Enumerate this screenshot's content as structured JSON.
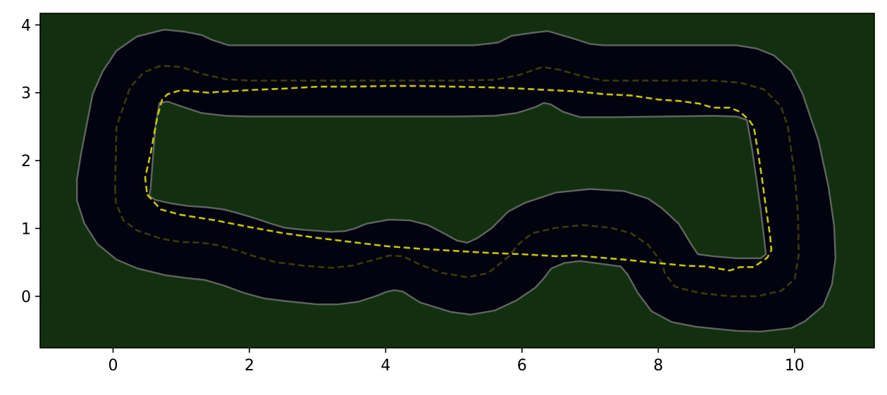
{
  "chart_data": {
    "type": "line",
    "title": "",
    "xlabel": "",
    "ylabel": "",
    "xlim": [
      -1.07,
      11.17
    ],
    "ylim": [
      -0.76,
      4.17
    ],
    "grid": false,
    "legend": "none",
    "x_ticks": [
      0,
      2,
      4,
      6,
      8,
      10
    ],
    "y_ticks": [
      0,
      1,
      2,
      3,
      4
    ],
    "x_tick_labels": [
      "0",
      "2",
      "4",
      "6",
      "8",
      "10"
    ],
    "y_tick_labels": [
      "0",
      "1",
      "2",
      "3",
      "4"
    ],
    "colors": {
      "background": "#12300f",
      "track": "#03030f",
      "track_edge": "#5f6460",
      "centerline": "#3b3a0a",
      "racing_line": "#c8c40a"
    },
    "series": [
      {
        "role": "track-outer-edge",
        "points": [
          [
            -0.53,
            1.72
          ],
          [
            -0.53,
            1.41
          ],
          [
            -0.42,
            1.07
          ],
          [
            -0.23,
            0.77
          ],
          [
            0.05,
            0.54
          ],
          [
            0.36,
            0.41
          ],
          [
            0.77,
            0.31
          ],
          [
            1.07,
            0.27
          ],
          [
            1.35,
            0.24
          ],
          [
            1.62,
            0.16
          ],
          [
            1.92,
            0.05
          ],
          [
            2.21,
            -0.03
          ],
          [
            2.52,
            -0.07
          ],
          [
            3.0,
            -0.12
          ],
          [
            3.3,
            -0.12
          ],
          [
            3.6,
            -0.08
          ],
          [
            3.85,
            0.0
          ],
          [
            4.0,
            0.06
          ],
          [
            4.12,
            0.09
          ],
          [
            4.25,
            0.07
          ],
          [
            4.5,
            -0.09
          ],
          [
            4.95,
            -0.23
          ],
          [
            5.25,
            -0.27
          ],
          [
            5.6,
            -0.21
          ],
          [
            5.92,
            -0.06
          ],
          [
            6.2,
            0.13
          ],
          [
            6.3,
            0.24
          ],
          [
            6.43,
            0.41
          ],
          [
            6.62,
            0.49
          ],
          [
            6.85,
            0.52
          ],
          [
            7.45,
            0.44
          ],
          [
            7.55,
            0.32
          ],
          [
            7.7,
            0.05
          ],
          [
            7.9,
            -0.22
          ],
          [
            8.2,
            -0.38
          ],
          [
            8.55,
            -0.45
          ],
          [
            9.15,
            -0.51
          ],
          [
            9.5,
            -0.52
          ],
          [
            9.95,
            -0.47
          ],
          [
            10.15,
            -0.37
          ],
          [
            10.42,
            -0.14
          ],
          [
            10.55,
            0.18
          ],
          [
            10.6,
            0.57
          ],
          [
            10.58,
            1.04
          ],
          [
            10.5,
            1.6
          ],
          [
            10.35,
            2.3
          ],
          [
            10.23,
            2.65
          ],
          [
            10.12,
            2.98
          ],
          [
            9.95,
            3.32
          ],
          [
            9.7,
            3.55
          ],
          [
            9.45,
            3.65
          ],
          [
            9.15,
            3.7
          ],
          [
            7.2,
            3.7
          ],
          [
            7.0,
            3.72
          ],
          [
            6.75,
            3.8
          ],
          [
            6.38,
            3.91
          ],
          [
            6.2,
            3.89
          ],
          [
            5.85,
            3.84
          ],
          [
            5.65,
            3.74
          ],
          [
            5.3,
            3.7
          ],
          [
            4.75,
            3.7
          ],
          [
            3.0,
            3.7
          ],
          [
            2.0,
            3.7
          ],
          [
            1.7,
            3.7
          ],
          [
            1.45,
            3.78
          ],
          [
            1.3,
            3.85
          ],
          [
            1.05,
            3.9
          ],
          [
            0.75,
            3.93
          ],
          [
            0.35,
            3.83
          ],
          [
            0.05,
            3.62
          ],
          [
            -0.15,
            3.32
          ],
          [
            -0.3,
            2.98
          ],
          [
            -0.47,
            2.1
          ],
          [
            -0.53,
            1.72
          ]
        ]
      },
      {
        "role": "track-inner-edge",
        "points": [
          [
            0.55,
            1.58
          ],
          [
            0.53,
            1.48
          ],
          [
            0.62,
            1.42
          ],
          [
            0.85,
            1.37
          ],
          [
            1.1,
            1.33
          ],
          [
            1.4,
            1.31
          ],
          [
            1.62,
            1.28
          ],
          [
            1.78,
            1.24
          ],
          [
            2.05,
            1.16
          ],
          [
            2.35,
            1.06
          ],
          [
            2.52,
            1.01
          ],
          [
            2.8,
            0.98
          ],
          [
            3.2,
            0.95
          ],
          [
            3.4,
            0.96
          ],
          [
            3.55,
            1.0
          ],
          [
            3.72,
            1.07
          ],
          [
            4.05,
            1.13
          ],
          [
            4.35,
            1.12
          ],
          [
            4.62,
            1.05
          ],
          [
            4.85,
            0.93
          ],
          [
            5.05,
            0.82
          ],
          [
            5.2,
            0.79
          ],
          [
            5.35,
            0.86
          ],
          [
            5.55,
            1.0
          ],
          [
            5.8,
            1.25
          ],
          [
            6.05,
            1.38
          ],
          [
            6.5,
            1.53
          ],
          [
            7.0,
            1.58
          ],
          [
            7.5,
            1.55
          ],
          [
            7.85,
            1.44
          ],
          [
            8.05,
            1.3
          ],
          [
            8.3,
            1.07
          ],
          [
            8.5,
            0.74
          ],
          [
            8.58,
            0.62
          ],
          [
            8.8,
            0.59
          ],
          [
            9.15,
            0.56
          ],
          [
            9.5,
            0.56
          ],
          [
            9.58,
            0.62
          ],
          [
            9.5,
            1.3
          ],
          [
            9.38,
            2.15
          ],
          [
            9.3,
            2.6
          ],
          [
            9.15,
            2.65
          ],
          [
            8.8,
            2.66
          ],
          [
            7.4,
            2.64
          ],
          [
            6.85,
            2.64
          ],
          [
            6.6,
            2.72
          ],
          [
            6.42,
            2.83
          ],
          [
            6.32,
            2.85
          ],
          [
            6.2,
            2.79
          ],
          [
            5.92,
            2.7
          ],
          [
            5.6,
            2.66
          ],
          [
            5.0,
            2.65
          ],
          [
            2.0,
            2.65
          ],
          [
            1.65,
            2.66
          ],
          [
            1.3,
            2.7
          ],
          [
            1.0,
            2.8
          ],
          [
            0.8,
            2.87
          ],
          [
            0.68,
            2.85
          ],
          [
            0.62,
            2.5
          ],
          [
            0.55,
            1.58
          ]
        ]
      },
      {
        "role": "track-centerline",
        "points": [
          [
            0.03,
            1.6
          ],
          [
            0.04,
            1.38
          ],
          [
            0.15,
            1.12
          ],
          [
            0.35,
            0.97
          ],
          [
            0.7,
            0.85
          ],
          [
            1.0,
            0.8
          ],
          [
            1.3,
            0.79
          ],
          [
            1.55,
            0.75
          ],
          [
            1.8,
            0.68
          ],
          [
            2.1,
            0.58
          ],
          [
            2.4,
            0.5
          ],
          [
            2.8,
            0.45
          ],
          [
            3.2,
            0.42
          ],
          [
            3.5,
            0.45
          ],
          [
            3.8,
            0.53
          ],
          [
            4.05,
            0.6
          ],
          [
            4.25,
            0.59
          ],
          [
            4.5,
            0.47
          ],
          [
            4.8,
            0.35
          ],
          [
            5.2,
            0.28
          ],
          [
            5.5,
            0.34
          ],
          [
            5.8,
            0.58
          ],
          [
            5.95,
            0.77
          ],
          [
            6.15,
            0.93
          ],
          [
            6.5,
            1.01
          ],
          [
            6.9,
            1.05
          ],
          [
            7.3,
            1.01
          ],
          [
            7.6,
            0.93
          ],
          [
            7.85,
            0.76
          ],
          [
            8.05,
            0.5
          ],
          [
            8.1,
            0.33
          ],
          [
            8.25,
            0.14
          ],
          [
            8.6,
            0.05
          ],
          [
            9.05,
            0.0
          ],
          [
            9.45,
            0.0
          ],
          [
            9.8,
            0.08
          ],
          [
            10.0,
            0.25
          ],
          [
            10.06,
            0.6
          ],
          [
            10.05,
            1.2
          ],
          [
            10.0,
            1.8
          ],
          [
            9.9,
            2.5
          ],
          [
            9.8,
            2.8
          ],
          [
            9.55,
            3.05
          ],
          [
            9.2,
            3.15
          ],
          [
            8.8,
            3.18
          ],
          [
            7.2,
            3.18
          ],
          [
            6.9,
            3.24
          ],
          [
            6.55,
            3.34
          ],
          [
            6.3,
            3.38
          ],
          [
            5.95,
            3.26
          ],
          [
            5.6,
            3.19
          ],
          [
            5.0,
            3.18
          ],
          [
            2.0,
            3.18
          ],
          [
            1.65,
            3.2
          ],
          [
            1.3,
            3.28
          ],
          [
            1.0,
            3.38
          ],
          [
            0.7,
            3.4
          ],
          [
            0.45,
            3.3
          ],
          [
            0.25,
            3.08
          ],
          [
            0.05,
            2.5
          ],
          [
            0.03,
            1.6
          ]
        ]
      },
      {
        "role": "racing-line",
        "points": [
          [
            0.5,
            1.5
          ],
          [
            0.7,
            1.28
          ],
          [
            1.0,
            1.2
          ],
          [
            1.5,
            1.12
          ],
          [
            2.0,
            1.02
          ],
          [
            2.5,
            0.93
          ],
          [
            3.0,
            0.86
          ],
          [
            3.5,
            0.8
          ],
          [
            4.0,
            0.74
          ],
          [
            4.5,
            0.7
          ],
          [
            5.0,
            0.67
          ],
          [
            5.5,
            0.64
          ],
          [
            6.0,
            0.62
          ],
          [
            6.5,
            0.59
          ],
          [
            6.8,
            0.6
          ],
          [
            7.5,
            0.54
          ],
          [
            8.0,
            0.49
          ],
          [
            8.4,
            0.45
          ],
          [
            8.7,
            0.44
          ],
          [
            9.05,
            0.38
          ],
          [
            9.2,
            0.43
          ],
          [
            9.4,
            0.43
          ],
          [
            9.6,
            0.57
          ],
          [
            9.66,
            0.68
          ],
          [
            9.64,
            0.9
          ],
          [
            9.58,
            1.3
          ],
          [
            9.52,
            1.75
          ],
          [
            9.46,
            2.15
          ],
          [
            9.4,
            2.5
          ],
          [
            9.33,
            2.6
          ],
          [
            9.2,
            2.72
          ],
          [
            9.05,
            2.78
          ],
          [
            8.8,
            2.78
          ],
          [
            8.6,
            2.84
          ],
          [
            8.3,
            2.88
          ],
          [
            8.0,
            2.9
          ],
          [
            7.6,
            2.96
          ],
          [
            7.2,
            2.98
          ],
          [
            6.8,
            3.02
          ],
          [
            6.4,
            3.04
          ],
          [
            6.0,
            3.06
          ],
          [
            5.5,
            3.08
          ],
          [
            5.0,
            3.09
          ],
          [
            4.5,
            3.1
          ],
          [
            4.0,
            3.1
          ],
          [
            3.5,
            3.09
          ],
          [
            3.0,
            3.09
          ],
          [
            2.5,
            3.06
          ],
          [
            2.0,
            3.04
          ],
          [
            1.5,
            3.01
          ],
          [
            1.4,
            3.0
          ],
          [
            1.2,
            3.02
          ],
          [
            1.0,
            3.04
          ],
          [
            0.8,
            2.98
          ],
          [
            0.72,
            2.9
          ],
          [
            0.65,
            2.65
          ],
          [
            0.55,
            2.1
          ],
          [
            0.47,
            1.75
          ],
          [
            0.5,
            1.5
          ]
        ]
      }
    ]
  }
}
